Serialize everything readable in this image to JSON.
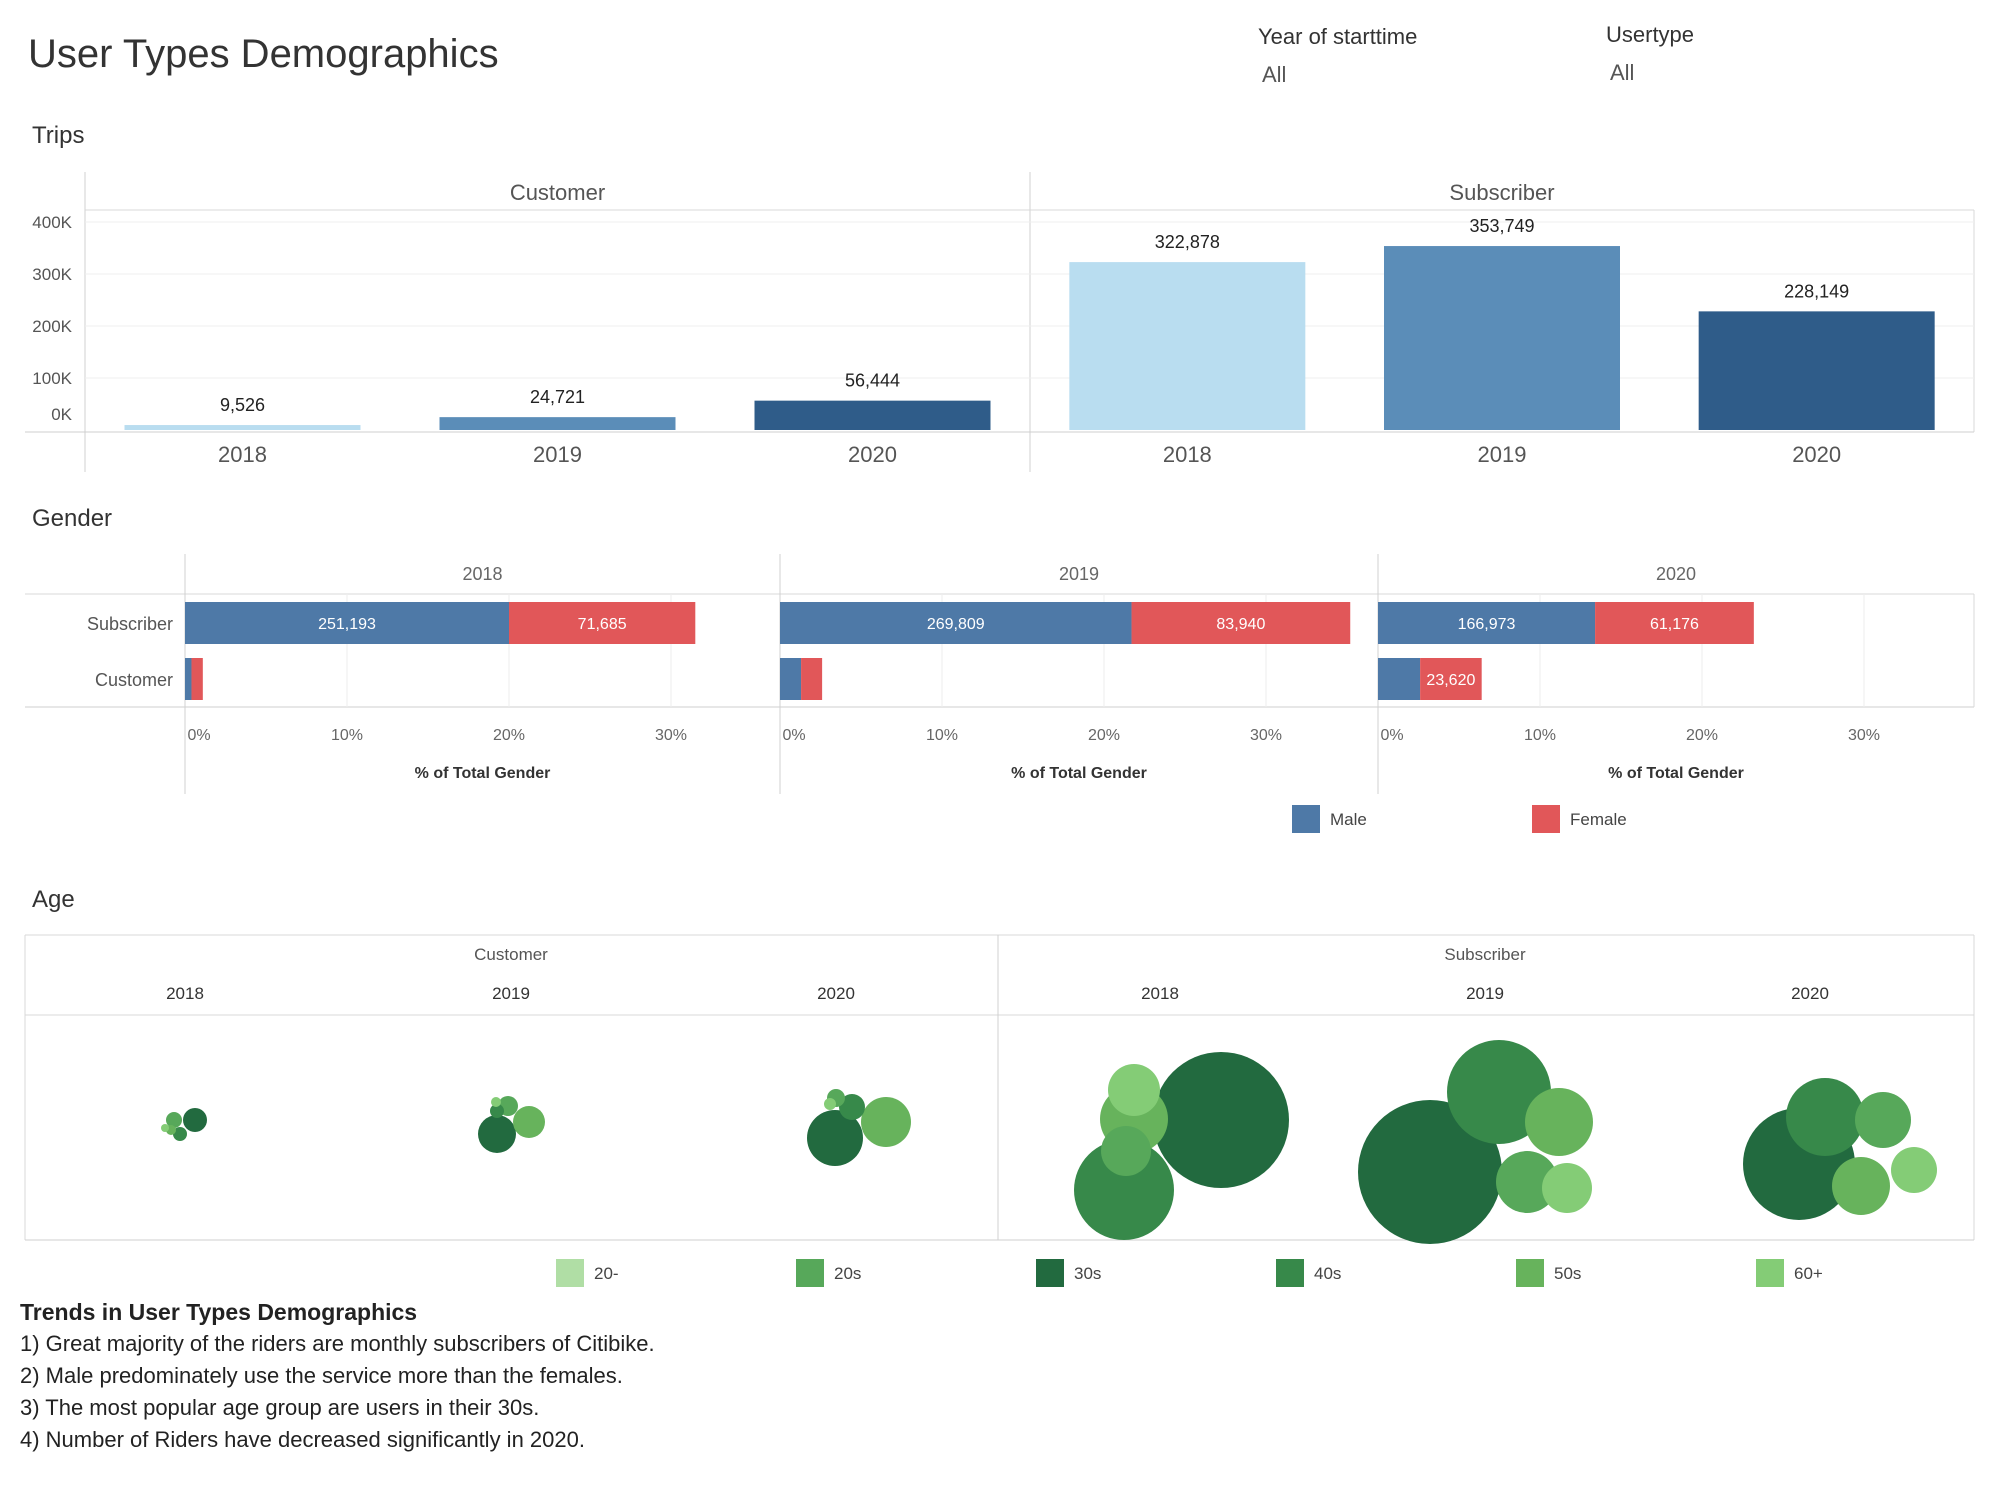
{
  "title": "User Types Demographics",
  "filters": [
    {
      "label": "Year of starttime",
      "value": "All"
    },
    {
      "label": "Usertype",
      "value": "All"
    }
  ],
  "colors": {
    "year_2018": "#b9ddf0",
    "year_2019": "#5b8db8",
    "year_2020": "#2f5c89",
    "male": "#4e79a7",
    "female": "#e15759",
    "age": {
      "20-": "#b0dea5",
      "20s": "#57a85a",
      "30s": "#226a3f",
      "40s": "#37894a",
      "50s": "#67b35c",
      "60+": "#84cc76"
    }
  },
  "sections": {
    "trips": "Trips",
    "gender": "Gender",
    "age": "Age"
  },
  "chart_data": [
    {
      "id": "trips",
      "type": "bar",
      "panels": [
        {
          "name": "Customer",
          "categories": [
            "2018",
            "2019",
            "2020"
          ],
          "values": [
            9526,
            24721,
            56444
          ],
          "labels": [
            "9,526",
            "24,721",
            "56,444"
          ]
        },
        {
          "name": "Subscriber",
          "categories": [
            "2018",
            "2019",
            "2020"
          ],
          "values": [
            322878,
            353749,
            228149
          ],
          "labels": [
            "322,878",
            "353,749",
            "228,149"
          ]
        }
      ],
      "yticks": [
        "0K",
        "100K",
        "200K",
        "300K",
        "400K"
      ],
      "ylim": [
        0,
        400000
      ],
      "grid": true
    },
    {
      "id": "gender",
      "type": "bar",
      "orientation": "horizontal-stacked",
      "panels": [
        "2018",
        "2019",
        "2020"
      ],
      "rows": [
        "Subscriber",
        "Customer"
      ],
      "series": [
        {
          "name": "Male",
          "values": [
            [
              20.0,
              0.4
            ],
            [
              21.7,
              1.3
            ],
            [
              13.4,
              2.6
            ]
          ],
          "labels": [
            [
              "251,193",
              ""
            ],
            [
              "269,809",
              ""
            ],
            [
              "166,973",
              ""
            ]
          ]
        },
        {
          "name": "Female",
          "values": [
            [
              11.5,
              0.7
            ],
            [
              13.5,
              1.3
            ],
            [
              9.8,
              3.8
            ]
          ],
          "labels": [
            [
              "71,685",
              ""
            ],
            [
              "83,940",
              ""
            ],
            [
              "61,176",
              "23,620"
            ]
          ]
        }
      ],
      "xticks": [
        "0%",
        "10%",
        "20%",
        "30%"
      ],
      "xlim": [
        0,
        35
      ],
      "xlabel": "% of Total Gender",
      "legend": [
        "Male",
        "Female"
      ],
      "legend_position": "bottom-right"
    },
    {
      "id": "age",
      "type": "bubble",
      "groups": [
        {
          "name": "Customer",
          "years": [
            {
              "year": "2018",
              "bubbles": [
                {
                  "age": "30s",
                  "r": 12
                },
                {
                  "age": "20s",
                  "r": 8
                },
                {
                  "age": "40s",
                  "r": 7
                },
                {
                  "age": "50s",
                  "r": 5
                },
                {
                  "age": "60+",
                  "r": 4
                }
              ]
            },
            {
              "year": "2019",
              "bubbles": [
                {
                  "age": "30s",
                  "r": 19
                },
                {
                  "age": "50s",
                  "r": 16
                },
                {
                  "age": "20s",
                  "r": 10
                },
                {
                  "age": "40s",
                  "r": 7
                },
                {
                  "age": "60+",
                  "r": 5
                }
              ]
            },
            {
              "year": "2020",
              "bubbles": [
                {
                  "age": "30s",
                  "r": 28
                },
                {
                  "age": "50s",
                  "r": 25
                },
                {
                  "age": "40s",
                  "r": 13
                },
                {
                  "age": "20s",
                  "r": 9
                },
                {
                  "age": "60+",
                  "r": 6
                }
              ]
            }
          ]
        },
        {
          "name": "Subscriber",
          "years": [
            {
              "year": "2018",
              "bubbles": [
                {
                  "age": "30s",
                  "r": 68
                },
                {
                  "age": "40s",
                  "r": 50
                },
                {
                  "age": "50s",
                  "r": 34
                },
                {
                  "age": "20s",
                  "r": 25
                },
                {
                  "age": "60+",
                  "r": 26
                }
              ]
            },
            {
              "year": "2019",
              "bubbles": [
                {
                  "age": "30s",
                  "r": 72
                },
                {
                  "age": "40s",
                  "r": 52
                },
                {
                  "age": "50s",
                  "r": 34
                },
                {
                  "age": "20s",
                  "r": 31
                },
                {
                  "age": "60+",
                  "r": 25
                }
              ]
            },
            {
              "year": "2020",
              "bubbles": [
                {
                  "age": "30s",
                  "r": 56
                },
                {
                  "age": "40s",
                  "r": 39
                },
                {
                  "age": "50s",
                  "r": 29
                },
                {
                  "age": "20s",
                  "r": 28
                },
                {
                  "age": "60+",
                  "r": 23
                }
              ]
            }
          ]
        }
      ],
      "legend": [
        "20-",
        "20s",
        "30s",
        "40s",
        "50s",
        "60+"
      ],
      "legend_position": "bottom"
    }
  ],
  "notes": {
    "heading": "Trends in User Types Demographics",
    "lines": [
      "1) Great majority of the riders are monthly subscribers of Citibike.",
      "2) Male predominately use the service more than the females.",
      "3) The most popular age group are users in their 30s.",
      "4) Number of Riders have decreased significantly in 2020."
    ]
  }
}
